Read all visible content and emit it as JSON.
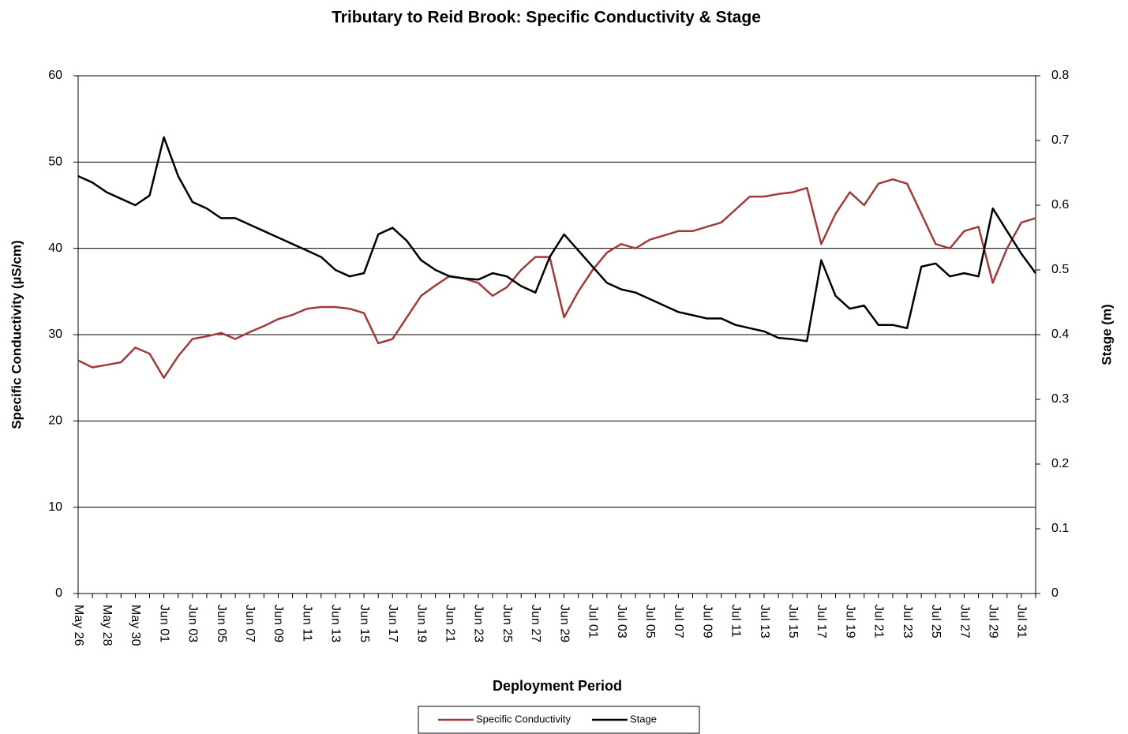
{
  "chart_data": {
    "type": "line",
    "title": "Tributary to Reid Brook: Specific Conductivity & Stage",
    "x_label": "Deployment Period",
    "y_label": "Specific Conductivity  (µS/cm)",
    "y2_label": "Stage (m)",
    "categories": [
      "May 26",
      null,
      "May 28",
      null,
      "May 30",
      null,
      "Jun 01",
      null,
      "Jun 03",
      null,
      "Jun 05",
      null,
      "Jun 07",
      null,
      "Jun 09",
      null,
      "Jun 11",
      null,
      "Jun 13",
      null,
      "Jun 15",
      null,
      "Jun 17",
      null,
      "Jun 19",
      null,
      "Jun 21",
      null,
      "Jun 23",
      null,
      "Jun 25",
      null,
      "Jun 27",
      null,
      "Jun 29",
      null,
      "Jul 01",
      null,
      "Jul 03",
      null,
      "Jul 05",
      null,
      "Jul 07",
      null,
      "Jul 09",
      null,
      "Jul 11",
      null,
      "Jul 13",
      null,
      "Jul 15",
      null,
      "Jul 17",
      null,
      "Jul 19",
      null,
      "Jul 21",
      null,
      "Jul 23",
      null,
      "Jul 25",
      null,
      "Jul 27",
      null,
      "Jul 29",
      null,
      "Jul 31",
      null
    ],
    "series": [
      {
        "name": "Specific Conductivity",
        "color": "#a33a3a",
        "axis": "y",
        "values": [
          27,
          26.2,
          26.5,
          26.8,
          28.5,
          27.8,
          25,
          27.5,
          29.5,
          29.8,
          30.2,
          29.5,
          30.3,
          31,
          31.8,
          32.3,
          33,
          33.2,
          33.2,
          33,
          32.5,
          29,
          29.5,
          32,
          34.5,
          35.7,
          36.8,
          36.5,
          36,
          34.5,
          35.5,
          37.5,
          39,
          39,
          32,
          35,
          37.5,
          39.5,
          40.5,
          40,
          41,
          41.5,
          42,
          42,
          42.5,
          43,
          44.5,
          46,
          46,
          46.3,
          46.5,
          47,
          40.5,
          44,
          46.5,
          45,
          47.5,
          48,
          47.5,
          44,
          40.5,
          40,
          42,
          42.5,
          36,
          40,
          43,
          43.5
        ]
      },
      {
        "name": "Stage",
        "color": "#000000",
        "axis": "y2",
        "values": [
          0.645,
          0.635,
          0.62,
          0.61,
          0.6,
          0.615,
          0.705,
          0.645,
          0.605,
          0.595,
          0.58,
          0.58,
          0.57,
          0.56,
          0.55,
          0.54,
          0.53,
          0.52,
          0.5,
          0.49,
          0.495,
          0.555,
          0.565,
          0.545,
          0.515,
          0.5,
          0.49,
          0.487,
          0.485,
          0.495,
          0.49,
          0.475,
          0.465,
          0.52,
          0.555,
          0.53,
          0.505,
          0.48,
          0.47,
          0.465,
          0.455,
          0.445,
          0.435,
          0.43,
          0.425,
          0.425,
          0.415,
          0.41,
          0.405,
          0.395,
          0.393,
          0.39,
          0.515,
          0.46,
          0.44,
          0.445,
          0.415,
          0.415,
          0.41,
          0.505,
          0.51,
          0.49,
          0.495,
          0.49,
          0.595,
          0.56,
          0.525,
          0.495
        ]
      }
    ],
    "ylim": [
      0,
      60
    ],
    "yticks": [
      0,
      10,
      20,
      30,
      40,
      50,
      60
    ],
    "y2lim": [
      0,
      0.8
    ],
    "y2ticks": [
      0,
      0.1,
      0.2,
      0.3,
      0.4,
      0.5,
      0.6,
      0.7,
      0.8
    ],
    "grid": true,
    "legend": "bottom"
  }
}
